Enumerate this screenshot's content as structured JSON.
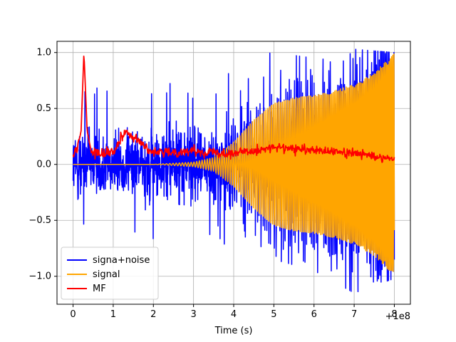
{
  "chart_data": {
    "type": "line",
    "title": "",
    "xlabel": "Time (s)",
    "ylabel": "",
    "x_offset_label": "+1e8",
    "xlim": [
      -0.4,
      8.4
    ],
    "ylim": [
      -1.25,
      1.1
    ],
    "xticks": [
      0,
      1,
      2,
      3,
      4,
      5,
      6,
      7,
      8
    ],
    "xtick_labels": [
      "0",
      "1",
      "2",
      "3",
      "4",
      "5",
      "6",
      "7",
      "8"
    ],
    "yticks": [
      -1.0,
      -0.5,
      0.0,
      0.5,
      1.0
    ],
    "ytick_labels": [
      "−1.0",
      "−0.5",
      "0.0",
      "0.5",
      "1.0"
    ],
    "grid": true,
    "legend_position": "lower-left",
    "series": [
      {
        "name": "signa+noise",
        "color": "#0000ff",
        "x_range": [
          0,
          8
        ],
        "description": "noise band roughly ±0.4 with peaks to ±1.0, on top of a chirp growing toward ±1.0",
        "envelope_x": [
          0,
          1,
          2,
          3,
          4,
          5,
          6,
          7,
          8
        ],
        "envelope_max": [
          0.85,
          0.75,
          0.92,
          0.86,
          0.95,
          1.0,
          0.95,
          1.03,
          1.0
        ],
        "envelope_min": [
          -0.55,
          -0.65,
          -0.7,
          -0.72,
          -0.8,
          -0.85,
          -0.95,
          -1.15,
          -1.02
        ]
      },
      {
        "name": "signal",
        "color": "#ffa500",
        "x_range": [
          0,
          8
        ],
        "description": "chirp, amplitude rising from 0 to 1.0, frequency increasing",
        "envelope_x": [
          0,
          1,
          2,
          3,
          3.5,
          4,
          4.5,
          5,
          5.5,
          6,
          6.5,
          7,
          7.5,
          8
        ],
        "envelope_amplitude": [
          0.0,
          0.0,
          0.0,
          0.02,
          0.06,
          0.2,
          0.4,
          0.55,
          0.6,
          0.62,
          0.66,
          0.72,
          0.82,
          1.0
        ]
      },
      {
        "name": "MF",
        "color": "#ff0000",
        "x_range": [
          0,
          8
        ],
        "description": "matched filter output, baseline near 0.1 with a peak of 1.0 at x≈0.27",
        "x": [
          0.0,
          0.1,
          0.2,
          0.25,
          0.27,
          0.3,
          0.35,
          0.45,
          0.6,
          1.0,
          1.3,
          2.0,
          3.0,
          4.0,
          5.0,
          6.0,
          7.0,
          8.0
        ],
        "y": [
          0.1,
          0.12,
          0.3,
          0.8,
          1.0,
          0.75,
          0.3,
          0.12,
          0.1,
          0.12,
          0.3,
          0.1,
          0.12,
          0.1,
          0.15,
          0.12,
          0.1,
          0.05
        ]
      }
    ]
  }
}
